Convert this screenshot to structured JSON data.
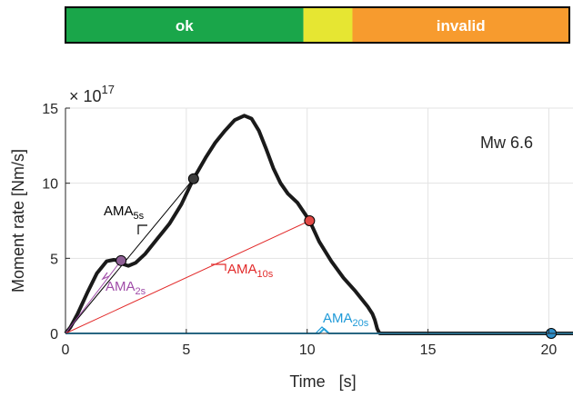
{
  "chart_data": {
    "type": "line",
    "status_bar": [
      {
        "label": "ok",
        "color": "#1aa64a",
        "from": 0,
        "to": 10.2
      },
      {
        "label": "",
        "color": "#e6e632",
        "from": 10.2,
        "to": 12.3
      },
      {
        "label": "invalid",
        "color": "#f79b2e",
        "from": 12.3,
        "to": 21.6
      }
    ],
    "xlabel": "Time   [s]",
    "ylabel": "Moment rate [Nm/s]",
    "exponent": {
      "base": "× 10",
      "power": "17"
    },
    "xlim": [
      0,
      21
    ],
    "ylim": [
      0,
      15
    ],
    "xticks": [
      0,
      5,
      10,
      15,
      20
    ],
    "yticks": [
      0,
      5,
      10,
      15
    ],
    "grid": true,
    "annotation": "Mw 6.6",
    "series": [
      {
        "color": "#1a1a1a",
        "x": [
          0,
          0.2,
          0.5,
          0.9,
          1.3,
          1.7,
          2.0,
          2.2,
          2.4,
          2.6,
          2.9,
          3.3,
          3.8,
          4.3,
          4.8,
          5.3,
          5.8,
          6.2,
          6.6,
          7.0,
          7.4,
          7.7,
          8.0,
          8.3,
          8.6,
          8.9,
          9.2,
          9.6,
          10.1,
          10.5,
          11.0,
          11.5,
          12.0,
          12.5,
          12.7,
          12.8,
          12.9,
          13.0,
          14,
          16,
          18,
          20,
          21
        ],
        "y": [
          0,
          0.4,
          1.3,
          2.7,
          4.0,
          4.8,
          4.9,
          4.85,
          4.6,
          4.5,
          4.7,
          5.3,
          6.3,
          7.3,
          8.6,
          10.3,
          11.7,
          12.7,
          13.5,
          14.2,
          14.5,
          14.3,
          13.5,
          12.3,
          11.0,
          10.0,
          9.3,
          8.7,
          7.5,
          6.1,
          4.8,
          3.7,
          2.8,
          1.8,
          1.3,
          0.9,
          0.3,
          0,
          0,
          0,
          0,
          0,
          0
        ]
      },
      {
        "color": "#2aa7dd",
        "x": [
          0,
          10.5,
          10.7,
          10.9,
          21
        ],
        "y": [
          0,
          0,
          0.3,
          0,
          0
        ]
      }
    ],
    "ama": [
      {
        "label": "AMA",
        "sub": "5s",
        "t": 5.3,
        "y": 10.3,
        "color": "#000000",
        "marker": "#3c3c3c"
      },
      {
        "label": "AMA",
        "sub": "10s",
        "t": 10.1,
        "y": 7.5,
        "color": "#e22a2a",
        "marker": "#e24a46"
      },
      {
        "label": "AMA",
        "sub": "2s",
        "t": 2.3,
        "y": 4.85,
        "color": "#a04ca8",
        "marker": "#8e5f95"
      },
      {
        "label": "AMA",
        "sub": "20s",
        "t": 20.1,
        "y": 0,
        "color": "#1f9ad8",
        "marker": "#2f8fc9"
      }
    ]
  }
}
